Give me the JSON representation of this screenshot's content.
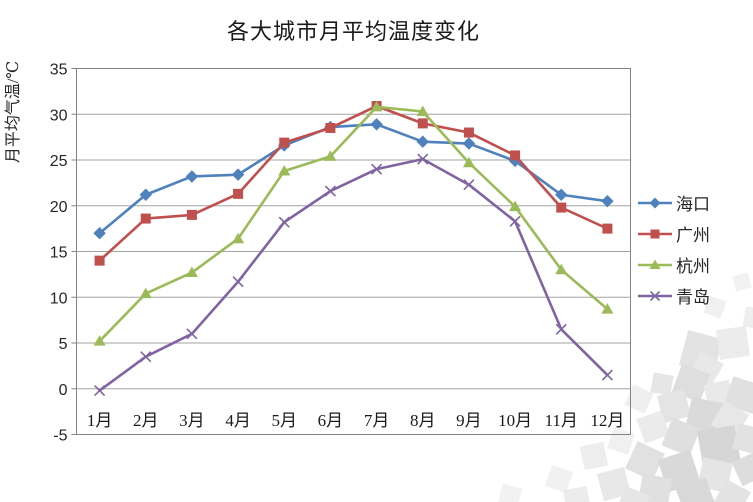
{
  "title": "各大城市月平均温度变化",
  "y_axis_title": "月平均气温/℃",
  "chart_data": {
    "type": "line",
    "categories": [
      "1月",
      "2月",
      "3月",
      "4月",
      "5月",
      "6月",
      "7月",
      "8月",
      "9月",
      "10月",
      "11月",
      "12月"
    ],
    "series": [
      {
        "name": "海口",
        "color": "#4F81BD",
        "marker": "diamond",
        "values": [
          17.0,
          21.2,
          23.2,
          23.4,
          26.6,
          28.6,
          28.9,
          27.0,
          26.8,
          24.9,
          21.2,
          20.5
        ]
      },
      {
        "name": "广州",
        "color": "#C0504D",
        "marker": "square",
        "values": [
          14.0,
          18.6,
          19.0,
          21.3,
          26.9,
          28.5,
          30.9,
          29.0,
          28.0,
          25.5,
          19.8,
          17.5
        ]
      },
      {
        "name": "杭州",
        "color": "#9BBB59",
        "marker": "triangle",
        "values": [
          5.2,
          10.4,
          12.7,
          16.4,
          23.8,
          25.4,
          30.8,
          30.3,
          24.7,
          19.9,
          13.0,
          8.7
        ]
      },
      {
        "name": "青岛",
        "color": "#8064A2",
        "marker": "x",
        "values": [
          -0.2,
          3.5,
          6.0,
          11.7,
          18.2,
          21.6,
          24.0,
          25.1,
          22.3,
          18.3,
          6.5,
          1.5
        ]
      }
    ],
    "ylabel": "月平均气温/℃",
    "ylim": [
      -5,
      35
    ],
    "yticks": [
      35,
      30,
      25,
      20,
      15,
      10,
      5,
      0,
      -5
    ],
    "grid": true,
    "legend_position": "right",
    "gridline_color": "#a3a3a3",
    "axis_border_color": "#848484",
    "text_color": "#262626"
  }
}
